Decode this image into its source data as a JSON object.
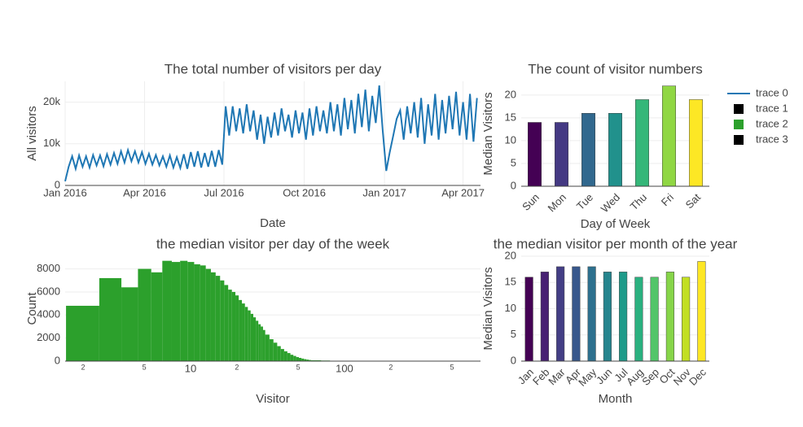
{
  "chart_data": [
    {
      "type": "line",
      "title": "The total number of visitors per day",
      "xlabel": "Date",
      "ylabel": "All visitors",
      "color": "#1f77b4",
      "grid": true,
      "x": [
        0,
        4,
        8,
        12,
        16,
        20,
        24,
        28,
        32,
        36,
        40,
        44,
        48,
        52,
        56,
        60,
        64,
        68,
        72,
        76,
        80,
        84,
        88,
        92,
        96,
        100,
        104,
        108,
        112,
        116,
        120,
        124,
        128,
        132,
        136,
        140,
        144,
        148,
        152,
        156,
        160,
        164,
        168,
        172,
        176,
        180,
        184,
        188,
        192,
        196,
        200,
        204,
        208,
        212,
        216,
        220,
        224,
        228,
        232,
        236,
        240,
        244,
        248,
        252,
        256,
        260,
        264,
        268,
        272,
        276,
        280,
        284,
        288,
        292,
        296,
        300,
        304,
        308,
        312,
        316,
        320,
        324,
        328,
        332,
        336,
        340,
        344,
        348,
        352,
        356,
        360,
        364,
        368,
        372,
        376,
        380,
        384,
        388,
        392,
        396,
        400,
        404,
        408,
        412,
        416,
        420,
        424,
        428,
        432,
        436,
        440,
        444,
        448,
        452,
        456,
        460,
        464,
        468,
        472
      ],
      "values": [
        1000,
        4500,
        7000,
        4000,
        7200,
        4500,
        7000,
        4300,
        7300,
        4800,
        7200,
        4600,
        7500,
        5000,
        7800,
        5200,
        8200,
        5500,
        8500,
        5800,
        8200,
        5500,
        8000,
        5200,
        7600,
        5000,
        7300,
        4800,
        7000,
        4500,
        7200,
        4300,
        6800,
        4200,
        7500,
        4000,
        8000,
        4500,
        8200,
        4300,
        7800,
        4500,
        8300,
        4500,
        8500,
        5000,
        19000,
        12000,
        19000,
        13000,
        18500,
        12500,
        19500,
        13000,
        18000,
        11000,
        17000,
        10000,
        16500,
        11500,
        17500,
        12000,
        18500,
        13000,
        17000,
        11500,
        18000,
        12500,
        17500,
        11000,
        18500,
        12000,
        19000,
        13000,
        18000,
        12500,
        20000,
        13000,
        19500,
        12000,
        21000,
        13500,
        20500,
        12500,
        22000,
        14000,
        23000,
        13000,
        21500,
        15000,
        24000,
        13000,
        3500,
        8000,
        12000,
        16000,
        18000,
        11000,
        19000,
        12500,
        20000,
        11500,
        21000,
        10000,
        19500,
        12000,
        22000,
        11000,
        20500,
        12500,
        21500,
        13500,
        22500,
        12000,
        20000,
        11000,
        22000,
        10500,
        21000
      ],
      "xlim": [
        0,
        476
      ],
      "xticks": [
        {
          "value": 0,
          "label": "Jan 2016"
        },
        {
          "value": 91,
          "label": "Apr 2016"
        },
        {
          "value": 182,
          "label": "Jul 2016"
        },
        {
          "value": 274,
          "label": "Oct 2016"
        },
        {
          "value": 366,
          "label": "Jan 2017"
        },
        {
          "value": 456,
          "label": "Apr 2017"
        }
      ],
      "ylim": [
        0,
        25000
      ],
      "yticks": [
        0,
        {
          "value": 10000,
          "label": "10k"
        },
        {
          "value": 20000,
          "label": "20k"
        }
      ]
    },
    {
      "type": "bar",
      "title": "The count of visitor numbers",
      "xlabel": "Day of Week",
      "ylabel": "Median Visitors",
      "grid": true,
      "categories": [
        "Sun",
        "Mon",
        "Tue",
        "Wed",
        "Thu",
        "Fri",
        "Sat"
      ],
      "values": [
        14,
        14,
        16,
        16,
        19,
        22,
        19
      ],
      "colors": [
        "#440154",
        "#443983",
        "#31688e",
        "#21918c",
        "#35b779",
        "#90d743",
        "#fde725"
      ],
      "ylim": [
        0,
        23
      ],
      "yticks": [
        0,
        5,
        10,
        15,
        20
      ]
    },
    {
      "type": "histogram",
      "title": "the median visitor per day of the week",
      "xlabel": "Visitor",
      "ylabel": "Count",
      "color": "#2ca02c",
      "grid": true,
      "xscale": "log",
      "bins": [
        1.55,
        2.55,
        3.55,
        4.55,
        5.55,
        6.55,
        7.55,
        8.55,
        9.55,
        10.55,
        11.55,
        12.55,
        13.55,
        14.55,
        15.55,
        16.55,
        17.55,
        18.55,
        19.55,
        20.55,
        21.55,
        22.55,
        23.55,
        24.55,
        25.55,
        26.55,
        27.55,
        28.55,
        29.55,
        30.55,
        32.55,
        34.55,
        36.55,
        38.55,
        40.55,
        42.55,
        44.55,
        46.55,
        48.55,
        50.55,
        52.55,
        54.55,
        56.55,
        58.55,
        60.55,
        70.55,
        80.55,
        90.55,
        100.55,
        150.55,
        300.55,
        750.55
      ],
      "values": [
        4800,
        7200,
        6400,
        8000,
        7700,
        8700,
        8600,
        8700,
        8600,
        8400,
        8300,
        8000,
        7700,
        7400,
        7000,
        6600,
        6200,
        6000,
        5700,
        5300,
        5000,
        4700,
        4400,
        4100,
        3800,
        3500,
        3200,
        3000,
        2700,
        2300,
        1900,
        1600,
        1300,
        1050,
        850,
        700,
        550,
        450,
        350,
        280,
        220,
        170,
        130,
        100,
        70,
        50,
        30,
        20,
        10,
        5,
        2
      ],
      "xlim": [
        1.53,
        766
      ],
      "xticks": [
        2,
        5,
        10,
        {
          "value": 20,
          "label": "2"
        },
        {
          "value": 50,
          "label": "5"
        },
        100,
        {
          "value": 200,
          "label": "2"
        },
        {
          "value": 500,
          "label": "5"
        }
      ],
      "ylim": [
        0,
        9100
      ],
      "yticks": [
        0,
        2000,
        4000,
        6000,
        8000
      ]
    },
    {
      "type": "bar",
      "title": "the median visitor per month of the year",
      "xlabel": "Month",
      "ylabel": "Median Visitors",
      "grid": true,
      "categories": [
        "Jan",
        "Feb",
        "Mar",
        "Apr",
        "May",
        "Jun",
        "Jul",
        "Aug",
        "Sep",
        "Oct",
        "Nov",
        "Dec"
      ],
      "values": [
        16,
        17,
        18,
        18,
        18,
        17,
        17,
        16,
        16,
        17,
        16,
        19
      ],
      "colors": [
        "#440154",
        "#482173",
        "#433e85",
        "#38588c",
        "#2d708e",
        "#25858e",
        "#1e9b8a",
        "#2ab07f",
        "#52c569",
        "#86d549",
        "#c2df23",
        "#fde725"
      ],
      "ylim": [
        0,
        20
      ],
      "yticks": [
        0,
        5,
        10,
        15,
        20
      ]
    }
  ],
  "legend": {
    "position": "right",
    "entries": [
      {
        "name": "trace 0",
        "color": "#1f77b4",
        "symbol": "line"
      },
      {
        "name": "trace 1",
        "color": "#000000",
        "symbol": "square"
      },
      {
        "name": "trace 2",
        "color": "#2ca02c",
        "symbol": "square"
      },
      {
        "name": "trace 3",
        "color": "#000000",
        "symbol": "square"
      }
    ]
  }
}
